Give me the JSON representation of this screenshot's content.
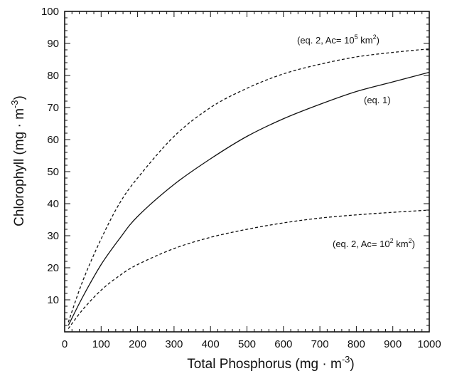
{
  "chart_data": {
    "type": "line",
    "title": "",
    "xlabel": "Total Phosphorus (mg · m-3)",
    "ylabel": "Chlorophyll (mg · m-3)",
    "xlabel_parts": {
      "text": "Total Phosphorus (mg · m",
      "sup": "-3",
      "end": ")"
    },
    "ylabel_parts": {
      "text": "Chlorophyll (mg · m",
      "sup": "-3",
      "end": ")"
    },
    "xlim": [
      0,
      1000
    ],
    "ylim": [
      0,
      100
    ],
    "xticks": [
      "0",
      "100",
      "200",
      "300",
      "400",
      "500",
      "600",
      "700",
      "800",
      "900",
      "1000"
    ],
    "yticks": [
      "10",
      "20",
      "30",
      "40",
      "50",
      "60",
      "70",
      "80",
      "90",
      "100"
    ],
    "grid": false,
    "legend": "none",
    "series": [
      {
        "style": "dashed",
        "label_parts": {
          "text": "(eq. 2, Ac= 10",
          "sup": "5",
          "end": " km",
          "sup2": "2",
          "end2": ")"
        },
        "x": [
          10,
          50,
          100,
          150,
          200,
          300,
          400,
          500,
          600,
          700,
          800,
          900,
          1000
        ],
        "y": [
          3,
          16,
          29,
          40,
          48,
          61,
          70,
          76,
          80.5,
          83.5,
          85.8,
          87.2,
          88.3
        ]
      },
      {
        "style": "solid",
        "label_parts": {
          "text": "(eq. 1)"
        },
        "x": [
          10,
          50,
          100,
          150,
          200,
          300,
          400,
          500,
          600,
          700,
          800,
          900,
          1000
        ],
        "y": [
          2,
          11,
          21,
          29,
          36,
          46,
          54,
          61,
          66.5,
          71,
          75,
          78,
          81
        ]
      },
      {
        "style": "dashed",
        "label_parts": {
          "text": "(eq. 2, Ac= 10",
          "sup": "2",
          "end": " km",
          "sup2": "2",
          "end2": ")"
        },
        "x": [
          10,
          50,
          100,
          150,
          200,
          300,
          400,
          500,
          600,
          700,
          800,
          900,
          1000
        ],
        "y": [
          1,
          7,
          13,
          17.5,
          21,
          26,
          29.5,
          32,
          34,
          35.5,
          36.5,
          37.3,
          38
        ]
      }
    ]
  }
}
